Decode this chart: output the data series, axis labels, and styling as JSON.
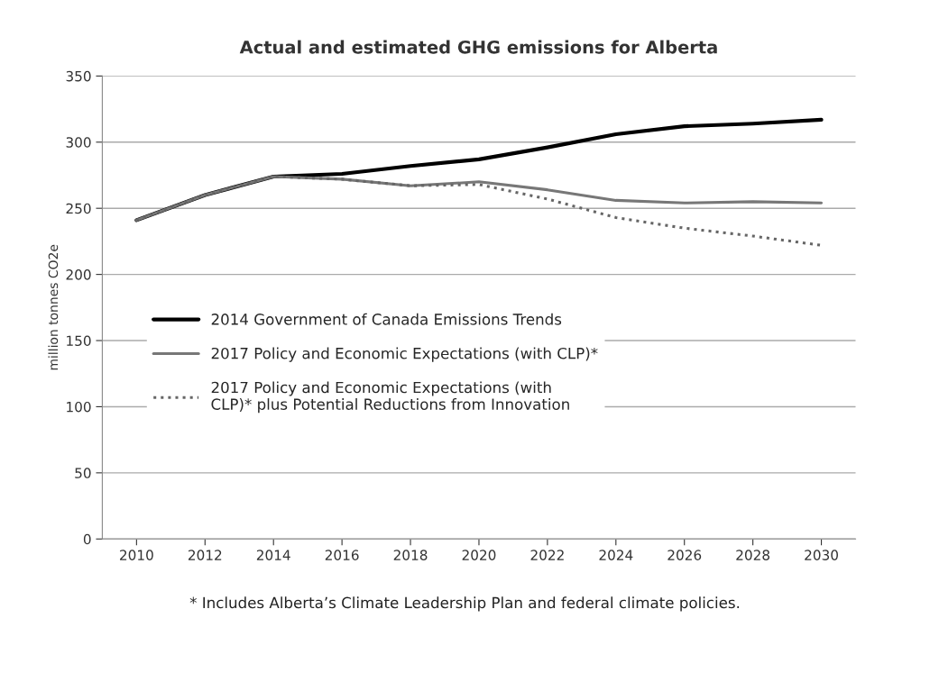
{
  "chart_data": {
    "type": "line",
    "title": "Actual and estimated GHG emissions for Alberta",
    "ylabel": "million tonnes CO2e",
    "x": [
      2010,
      2012,
      2014,
      2016,
      2018,
      2020,
      2022,
      2024,
      2026,
      2028,
      2030
    ],
    "series": [
      {
        "name": "2014 Government of Canada Emissions Trends",
        "color": "#000000",
        "line_style": "solid",
        "values": [
          241,
          260,
          274,
          276,
          282,
          287,
          296,
          306,
          312,
          314,
          317
        ]
      },
      {
        "name": "2017 Policy and Economic Expectations (with CLP)*",
        "color": "#777777",
        "line_style": "solid",
        "values": [
          241,
          260,
          274,
          272,
          267,
          270,
          264,
          256,
          254,
          255,
          254
        ]
      },
      {
        "name": "2017 Policy and Economic Expectations (with\nCLP)* plus Potential Reductions from Innovation",
        "color": "#666666",
        "line_style": "dotted",
        "values": [
          241,
          260,
          274,
          272,
          267,
          268,
          257,
          243,
          235,
          229,
          222
        ]
      }
    ],
    "xlim": [
      2009,
      2031
    ],
    "xticks": [
      2010,
      2012,
      2014,
      2016,
      2018,
      2020,
      2022,
      2024,
      2026,
      2028,
      2030
    ],
    "ylim": [
      0,
      350
    ],
    "yticks": [
      0,
      50,
      100,
      150,
      200,
      250,
      300,
      350
    ],
    "grid": "y",
    "legend": "left",
    "marker": "none",
    "annotations": [
      "* Includes Alberta’s Climate Leadership Plan and federal climate policies."
    ]
  }
}
